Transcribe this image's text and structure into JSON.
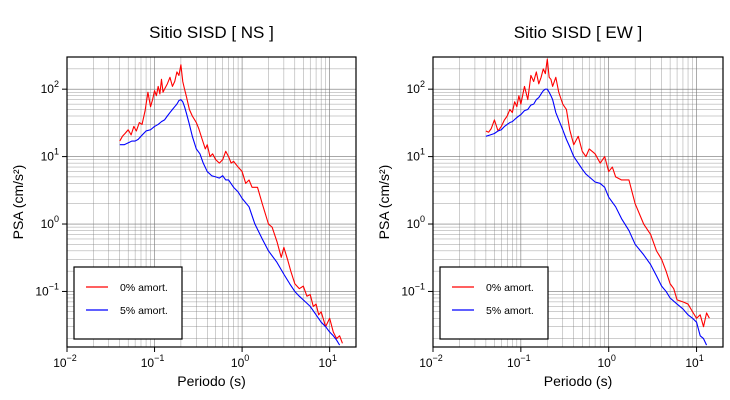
{
  "chart_data": [
    {
      "type": "line",
      "title": "Sitio SISD [ NS ]",
      "xlabel": "Periodo (s)",
      "ylabel": "PSA (cm/s²)",
      "xscale": "log",
      "yscale": "log",
      "xlim": [
        0.01,
        20
      ],
      "ylim": [
        0.015,
        300
      ],
      "grid": true,
      "legend_position": "bottom-left",
      "xticks": [
        {
          "base": "10",
          "exp": "−2",
          "value": 0.01
        },
        {
          "base": "10",
          "exp": "−1",
          "value": 0.1
        },
        {
          "base": "10",
          "exp": "0",
          "value": 1
        },
        {
          "base": "10",
          "exp": "1",
          "value": 10
        }
      ],
      "yticks": [
        {
          "base": "10",
          "exp": "−1",
          "value": 0.1
        },
        {
          "base": "10",
          "exp": "0",
          "value": 1
        },
        {
          "base": "10",
          "exp": "1",
          "value": 10
        },
        {
          "base": "10",
          "exp": "2",
          "value": 100
        }
      ],
      "series": [
        {
          "name": "0% amort.",
          "color": "#ff0000",
          "x": [
            0.04,
            0.043,
            0.046,
            0.05,
            0.054,
            0.058,
            0.062,
            0.067,
            0.072,
            0.078,
            0.084,
            0.09,
            0.095,
            0.1,
            0.105,
            0.11,
            0.115,
            0.12,
            0.125,
            0.13,
            0.14,
            0.15,
            0.16,
            0.17,
            0.18,
            0.19,
            0.2,
            0.21,
            0.22,
            0.23,
            0.25,
            0.27,
            0.3,
            0.32,
            0.35,
            0.38,
            0.4,
            0.43,
            0.46,
            0.5,
            0.55,
            0.6,
            0.65,
            0.7,
            0.75,
            0.8,
            0.9,
            1.0,
            1.1,
            1.2,
            1.3,
            1.5,
            1.7,
            2.0,
            2.2,
            2.5,
            2.8,
            3.0,
            3.3,
            3.6,
            4.0,
            4.5,
            5.0,
            5.5,
            6.0,
            6.5,
            7.0,
            7.5,
            8.0,
            9.0,
            10.0,
            11.0,
            12.0,
            13.0,
            14.0
          ],
          "y": [
            17,
            20,
            22,
            25,
            21,
            28,
            24,
            32,
            30,
            48,
            90,
            55,
            70,
            95,
            80,
            110,
            85,
            140,
            90,
            100,
            120,
            150,
            110,
            130,
            180,
            160,
            230,
            130,
            100,
            80,
            50,
            40,
            32,
            26,
            18,
            13,
            15,
            10,
            11,
            9,
            8,
            9,
            12,
            10,
            8,
            8.5,
            7,
            6,
            4,
            4.5,
            3.5,
            3.5,
            2.0,
            1.0,
            0.9,
            0.55,
            0.32,
            0.45,
            0.3,
            0.2,
            0.13,
            0.11,
            0.12,
            0.085,
            0.09,
            0.06,
            0.065,
            0.045,
            0.05,
            0.03,
            0.04,
            0.025,
            0.02,
            0.022,
            0.017
          ]
        },
        {
          "name": "5% amort.",
          "color": "#0000ff",
          "x": [
            0.04,
            0.045,
            0.05,
            0.055,
            0.06,
            0.065,
            0.07,
            0.075,
            0.08,
            0.09,
            0.1,
            0.11,
            0.12,
            0.13,
            0.14,
            0.15,
            0.16,
            0.17,
            0.18,
            0.19,
            0.2,
            0.21,
            0.22,
            0.23,
            0.25,
            0.27,
            0.3,
            0.33,
            0.36,
            0.4,
            0.45,
            0.5,
            0.55,
            0.6,
            0.65,
            0.7,
            0.8,
            0.9,
            1.0,
            1.2,
            1.4,
            1.7,
            2.0,
            2.5,
            3.0,
            3.5,
            4.0,
            4.5,
            5.0,
            6.0,
            7.0,
            8.0,
            9.0,
            10.0,
            11.0,
            12.0,
            13.0
          ],
          "y": [
            15,
            15,
            16,
            17,
            17,
            18,
            20,
            22,
            24,
            25,
            28,
            30,
            33,
            35,
            40,
            45,
            50,
            55,
            60,
            68,
            70,
            65,
            55,
            45,
            30,
            20,
            13,
            11,
            8,
            6,
            5.2,
            5,
            4.8,
            5.2,
            4.5,
            4.5,
            3.5,
            3.0,
            2.4,
            1.8,
            1.0,
            0.6,
            0.4,
            0.27,
            0.18,
            0.13,
            0.1,
            0.085,
            0.075,
            0.06,
            0.045,
            0.035,
            0.03,
            0.025,
            0.022,
            0.019,
            0.016
          ]
        }
      ]
    },
    {
      "type": "line",
      "title": "Sitio SISD [ EW ]",
      "xlabel": "Periodo (s)",
      "ylabel": "PSA (cm/s²)",
      "xscale": "log",
      "yscale": "log",
      "xlim": [
        0.01,
        20
      ],
      "ylim": [
        0.015,
        300
      ],
      "grid": true,
      "legend_position": "bottom-left",
      "xticks": [
        {
          "base": "10",
          "exp": "−2",
          "value": 0.01
        },
        {
          "base": "10",
          "exp": "−1",
          "value": 0.1
        },
        {
          "base": "10",
          "exp": "0",
          "value": 1
        },
        {
          "base": "10",
          "exp": "1",
          "value": 10
        }
      ],
      "yticks": [
        {
          "base": "10",
          "exp": "−1",
          "value": 0.1
        },
        {
          "base": "10",
          "exp": "0",
          "value": 1
        },
        {
          "base": "10",
          "exp": "1",
          "value": 10
        },
        {
          "base": "10",
          "exp": "2",
          "value": 100
        }
      ],
      "series": [
        {
          "name": "0% amort.",
          "color": "#ff0000",
          "x": [
            0.04,
            0.043,
            0.046,
            0.05,
            0.055,
            0.06,
            0.065,
            0.07,
            0.075,
            0.08,
            0.085,
            0.09,
            0.095,
            0.1,
            0.11,
            0.12,
            0.13,
            0.14,
            0.15,
            0.16,
            0.17,
            0.18,
            0.19,
            0.2,
            0.21,
            0.22,
            0.23,
            0.25,
            0.27,
            0.3,
            0.33,
            0.36,
            0.4,
            0.45,
            0.5,
            0.55,
            0.6,
            0.7,
            0.8,
            0.9,
            1.0,
            1.1,
            1.2,
            1.4,
            1.7,
            2.0,
            2.5,
            3.0,
            3.5,
            4.0,
            4.5,
            5.0,
            5.5,
            6.0,
            7.0,
            8.0,
            9.0,
            10.0,
            11.0,
            12.0,
            13.0,
            14.0
          ],
          "y": [
            24,
            23,
            26,
            35,
            24,
            28,
            35,
            40,
            50,
            45,
            65,
            55,
            80,
            60,
            110,
            70,
            160,
            130,
            180,
            120,
            150,
            200,
            170,
            280,
            150,
            140,
            110,
            150,
            90,
            60,
            50,
            25,
            15,
            20,
            12,
            10,
            13,
            11,
            8,
            10,
            6,
            7,
            5,
            4.5,
            4.5,
            2.0,
            1.0,
            0.7,
            0.4,
            0.3,
            0.2,
            0.13,
            0.11,
            0.075,
            0.07,
            0.065,
            0.05,
            0.04,
            0.045,
            0.03,
            0.048,
            0.04
          ]
        },
        {
          "name": "5% amort.",
          "color": "#0000ff",
          "x": [
            0.04,
            0.045,
            0.05,
            0.055,
            0.06,
            0.065,
            0.07,
            0.075,
            0.08,
            0.09,
            0.1,
            0.11,
            0.12,
            0.13,
            0.14,
            0.15,
            0.16,
            0.17,
            0.18,
            0.19,
            0.2,
            0.21,
            0.22,
            0.23,
            0.25,
            0.27,
            0.3,
            0.33,
            0.36,
            0.4,
            0.45,
            0.5,
            0.55,
            0.6,
            0.7,
            0.8,
            0.9,
            1.0,
            1.2,
            1.4,
            1.7,
            2.0,
            2.5,
            3.0,
            3.5,
            4.0,
            4.5,
            5.0,
            6.0,
            7.0,
            8.0,
            9.0,
            10.0,
            11.0,
            12.0,
            13.0
          ],
          "y": [
            20,
            21,
            22,
            24,
            25,
            28,
            30,
            32,
            33,
            38,
            42,
            48,
            50,
            58,
            60,
            70,
            75,
            85,
            95,
            100,
            100,
            90,
            80,
            70,
            45,
            35,
            25,
            18,
            14,
            10,
            8,
            6.5,
            5.5,
            5,
            4.2,
            4,
            3.5,
            2.5,
            1.8,
            1.2,
            0.8,
            0.5,
            0.35,
            0.25,
            0.17,
            0.12,
            0.1,
            0.08,
            0.065,
            0.055,
            0.045,
            0.04,
            0.035,
            0.022,
            0.02,
            0.016
          ]
        }
      ]
    }
  ]
}
